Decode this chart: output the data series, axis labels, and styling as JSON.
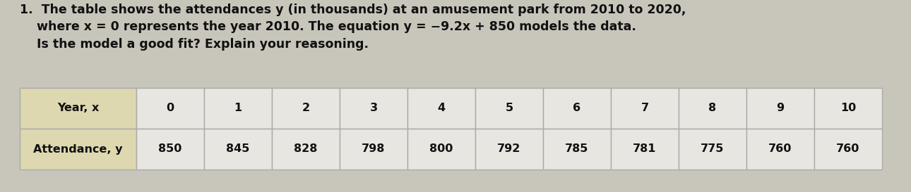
{
  "row1_header": "Year, x",
  "row2_header": "Attendance, y",
  "years": [
    "0",
    "1",
    "2",
    "3",
    "4",
    "5",
    "6",
    "7",
    "8",
    "9",
    "10"
  ],
  "attendance": [
    "850",
    "845",
    "828",
    "798",
    "800",
    "792",
    "785",
    "781",
    "775",
    "760",
    "760"
  ],
  "header_bg": "#ddd8b0",
  "data_bg": "#e8e6e0",
  "border_color": "#aaaaaa",
  "text_color": "#111111",
  "fig_bg": "#c8c5bb",
  "title_line1": "1.  The table shows the attendances ",
  "title_line1b": "y",
  "title_line1c": " (in thousands) at an amusement park from 2010 to 2020,",
  "title_line2a": "    where ",
  "title_line2b": "x",
  "title_line2c": " = 0 represents the year 2010. The equation ",
  "title_line2d": "y",
  "title_line2e": " = −9.2",
  "title_line2f": "x",
  "title_line2g": " + 850 models the data.",
  "title_line3": "    Is the model a good fit? Explain your reasoning.",
  "fontsize": 12.5,
  "header_fontsize": 11.5,
  "data_fontsize": 11.5
}
